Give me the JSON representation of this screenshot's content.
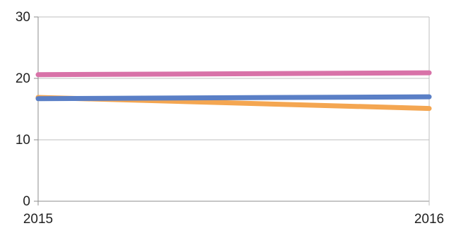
{
  "chart_data": {
    "type": "line",
    "x": [
      "2015",
      "2016"
    ],
    "y_ticks": [
      "0",
      "10",
      "20",
      "30"
    ],
    "ylim": [
      0,
      30
    ],
    "grid": {
      "horizontal": true,
      "vertical": true
    },
    "legend": "none",
    "series": [
      {
        "color": "#D872A8",
        "values": [
          20.6,
          20.9
        ]
      },
      {
        "color": "#F4A651",
        "values": [
          16.9,
          15.1
        ]
      },
      {
        "color": "#5A7FC6",
        "values": [
          16.7,
          17.0
        ]
      }
    ],
    "colors": {
      "grid": "#BFBFBF",
      "axis": "#8C8C8C",
      "text": "#222222"
    }
  }
}
